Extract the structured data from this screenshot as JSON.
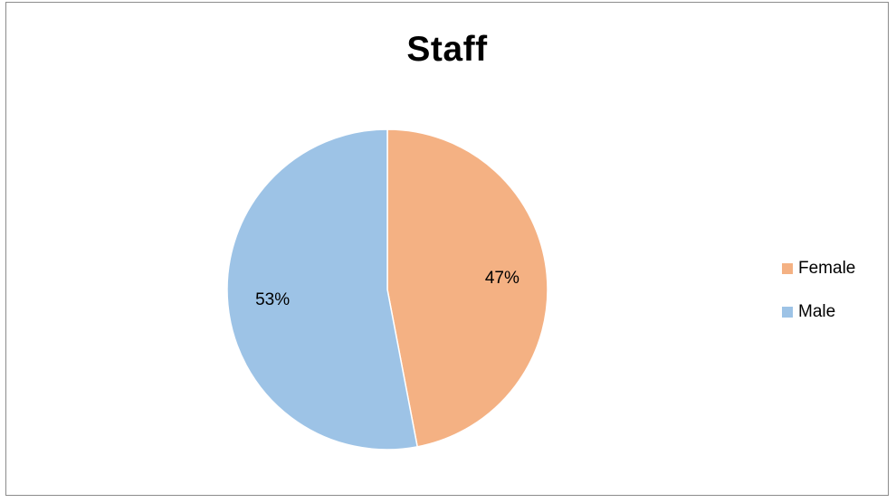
{
  "chart_data": {
    "type": "pie",
    "title": "Staff",
    "slices": [
      {
        "name": "Female",
        "value": 47,
        "label": "47%",
        "color": "#F4B183"
      },
      {
        "name": "Male",
        "value": 53,
        "label": "53%",
        "color": "#9DC3E6"
      }
    ],
    "start_angle": "12 o'clock",
    "direction": "clockwise",
    "legend": {
      "placement": "right",
      "items": [
        {
          "label": "Female",
          "color": "#F4B183"
        },
        {
          "label": "Male",
          "color": "#9DC3E6"
        }
      ]
    }
  }
}
